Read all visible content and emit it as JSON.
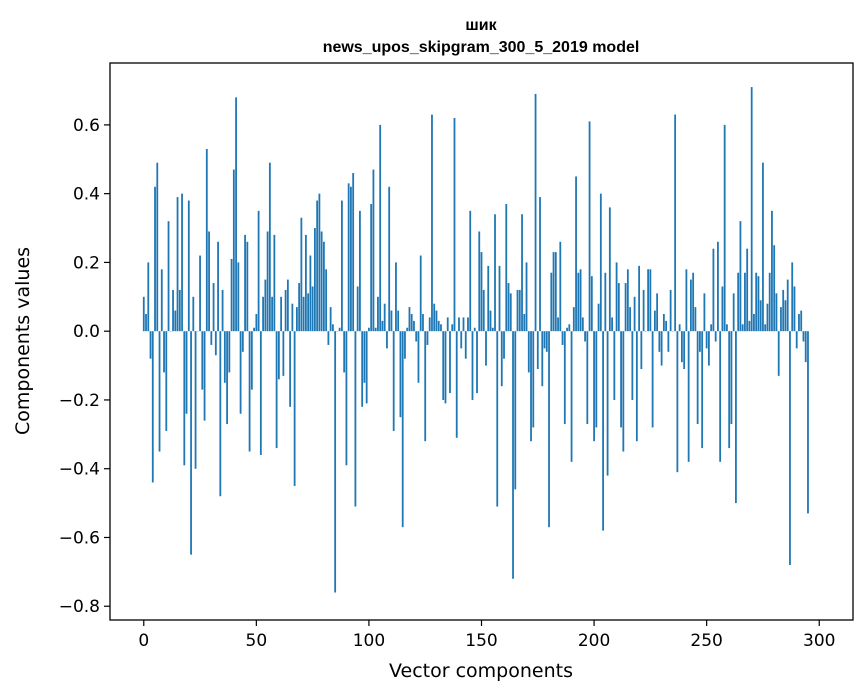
{
  "chart_data": {
    "type": "bar",
    "title": "шик",
    "subtitle": "news_upos_skipgram_300_5_2019 model",
    "xlabel": "Vector components",
    "ylabel": "Components values",
    "xlim": [
      -15,
      315
    ],
    "ylim": [
      -0.84,
      0.78
    ],
    "xticks": [
      0,
      50,
      100,
      150,
      200,
      250,
      300
    ],
    "yticks": [
      -0.8,
      -0.6,
      -0.4,
      -0.2,
      0.0,
      0.2,
      0.4,
      0.6
    ],
    "ytick_labels": [
      "−0.8",
      "−0.6",
      "−0.4",
      "−0.2",
      "0.0",
      "0.2",
      "0.4",
      "0.6"
    ],
    "grid": false,
    "bar_color": "#1f77b4",
    "x_start": 0,
    "values": [
      0.1,
      0.05,
      0.2,
      -0.08,
      -0.44,
      0.42,
      0.49,
      -0.35,
      0.18,
      -0.12,
      -0.29,
      0.32,
      0.0,
      0.12,
      0.06,
      0.39,
      0.12,
      0.4,
      -0.39,
      -0.24,
      0.38,
      -0.65,
      0.1,
      -0.4,
      0.0,
      0.22,
      -0.17,
      -0.26,
      0.53,
      0.29,
      -0.04,
      0.14,
      -0.07,
      0.26,
      -0.48,
      0.12,
      -0.15,
      -0.27,
      -0.12,
      0.21,
      0.47,
      0.68,
      0.2,
      -0.24,
      -0.06,
      0.28,
      0.26,
      -0.35,
      -0.17,
      0.01,
      0.05,
      0.35,
      -0.36,
      0.1,
      0.15,
      0.29,
      0.49,
      0.1,
      0.28,
      -0.34,
      -0.14,
      0.1,
      -0.13,
      0.12,
      0.15,
      -0.22,
      0.08,
      -0.45,
      0.07,
      0.14,
      0.33,
      0.1,
      0.28,
      0.11,
      0.22,
      0.13,
      0.3,
      0.38,
      0.4,
      0.29,
      0.26,
      0.18,
      -0.04,
      0.07,
      0.02,
      -0.76,
      0.0,
      0.01,
      0.38,
      -0.12,
      -0.39,
      0.43,
      0.42,
      0.46,
      -0.51,
      0.13,
      0.35,
      -0.22,
      -0.15,
      -0.21,
      0.01,
      0.37,
      0.47,
      0.01,
      0.1,
      0.6,
      0.03,
      0.08,
      -0.05,
      0.42,
      0.06,
      -0.29,
      0.2,
      0.06,
      -0.25,
      -0.57,
      -0.08,
      0.01,
      0.07,
      0.05,
      0.03,
      -0.03,
      -0.15,
      0.22,
      0.05,
      -0.32,
      -0.04,
      0.04,
      0.63,
      0.08,
      0.06,
      0.03,
      0.02,
      -0.2,
      -0.21,
      0.04,
      -0.18,
      0.02,
      0.62,
      -0.31,
      0.04,
      -0.05,
      0.04,
      -0.08,
      0.04,
      0.35,
      -0.2,
      0.01,
      -0.18,
      0.29,
      0.23,
      0.12,
      -0.1,
      0.19,
      0.06,
      0.01,
      0.34,
      -0.51,
      0.19,
      -0.16,
      -0.08,
      0.37,
      0.14,
      0.11,
      -0.72,
      -0.46,
      0.12,
      0.12,
      0.34,
      0.05,
      0.2,
      -0.12,
      -0.32,
      -0.28,
      0.69,
      -0.11,
      0.39,
      -0.16,
      -0.05,
      -0.06,
      -0.57,
      0.17,
      0.23,
      0.23,
      0.04,
      0.26,
      -0.04,
      -0.27,
      0.01,
      0.02,
      -0.38,
      0.07,
      0.45,
      0.17,
      0.18,
      0.04,
      -0.03,
      -0.27,
      0.61,
      0.16,
      -0.32,
      -0.28,
      0.08,
      0.4,
      -0.58,
      0.17,
      -0.42,
      0.36,
      0.04,
      -0.2,
      0.2,
      0.14,
      -0.28,
      -0.35,
      0.14,
      0.18,
      0.07,
      -0.2,
      0.1,
      -0.32,
      0.19,
      -0.11,
      0.12,
      0.0,
      0.18,
      0.18,
      -0.28,
      0.06,
      0.11,
      -0.06,
      -0.1,
      0.05,
      0.03,
      -0.06,
      0.12,
      0.0,
      0.63,
      -0.41,
      0.02,
      -0.09,
      -0.11,
      0.18,
      -0.38,
      0.15,
      0.17,
      0.07,
      -0.27,
      -0.06,
      -0.34,
      0.11,
      -0.05,
      -0.1,
      0.02,
      0.24,
      -0.03,
      0.26,
      -0.38,
      0.13,
      0.6,
      0.02,
      -0.34,
      -0.27,
      0.11,
      -0.5,
      0.17,
      0.32,
      0.02,
      0.17,
      0.24,
      0.03,
      0.71,
      0.05,
      0.17,
      0.16,
      0.09,
      0.49,
      0.02,
      0.08,
      0.17,
      0.35,
      0.25,
      0.11,
      -0.13,
      0.07,
      0.12,
      0.09,
      0.15,
      -0.68,
      0.2,
      0.13,
      -0.05,
      0.05,
      0.06,
      -0.03,
      -0.09,
      -0.53
    ]
  }
}
